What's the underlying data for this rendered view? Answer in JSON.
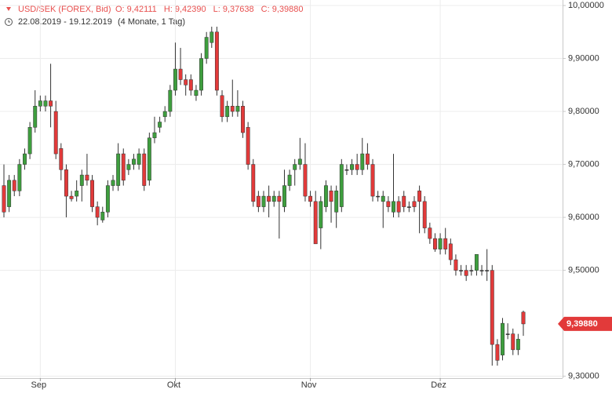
{
  "chart_data": {
    "type": "candlestick",
    "instrument": "USD/SEK (FOREX, Bid)",
    "ohlc_labels": [
      "O: 9,42111",
      "H: 9,42390",
      "L: 9,37638",
      "C: 9,39880"
    ],
    "date_range": "22.08.2019 - 19.12.2019",
    "duration": "(4 Monate, 1 Tag)",
    "up_color": "#3e9e3e",
    "down_color": "#e23a3a",
    "header_color": "#e8504f",
    "grid": true,
    "ylim": [
      9.2965,
      10.0104
    ],
    "yticks": [
      {
        "value": 10.0,
        "label": "10,00000"
      },
      {
        "value": 9.9,
        "label": "9,90000"
      },
      {
        "value": 9.8,
        "label": "9,80000"
      },
      {
        "value": 9.7,
        "label": "9,70000"
      },
      {
        "value": 9.6,
        "label": "9,60000"
      },
      {
        "value": 9.5,
        "label": "9,50000"
      },
      {
        "value": 9.3,
        "label": "9,30000"
      }
    ],
    "last_price": {
      "value": 9.3988,
      "label": "9,39880"
    },
    "categories": [
      null,
      null,
      null,
      null,
      null,
      null,
      null,
      "Sep",
      null,
      null,
      null,
      null,
      null,
      null,
      null,
      null,
      null,
      null,
      null,
      null,
      null,
      null,
      null,
      null,
      null,
      null,
      null,
      null,
      null,
      null,
      null,
      null,
      null,
      "Okt",
      null,
      null,
      null,
      null,
      null,
      null,
      null,
      null,
      null,
      null,
      null,
      null,
      null,
      null,
      null,
      null,
      null,
      null,
      null,
      null,
      null,
      null,
      null,
      null,
      null,
      "Nov",
      null,
      null,
      null,
      null,
      null,
      null,
      null,
      null,
      null,
      null,
      null,
      null,
      null,
      null,
      null,
      null,
      null,
      null,
      null,
      null,
      null,
      null,
      null,
      null,
      "Dez",
      null,
      null,
      null,
      null,
      null,
      null,
      null,
      null,
      null,
      null,
      null,
      null,
      null,
      null,
      null,
      null
    ],
    "open": [
      9.66,
      9.62,
      9.67,
      9.65,
      9.7,
      9.72,
      9.77,
      9.81,
      9.81,
      9.82,
      9.8,
      9.73,
      9.69,
      9.64,
      9.64,
      9.66,
      9.68,
      9.67,
      9.62,
      9.595,
      9.61,
      9.66,
      9.66,
      9.72,
      9.69,
      9.7,
      9.7,
      9.72,
      9.67,
      9.75,
      9.77,
      9.79,
      9.8,
      9.84,
      9.88,
      9.86,
      9.86,
      9.83,
      9.84,
      9.9,
      9.93,
      9.95,
      9.83,
      9.79,
      9.81,
      9.8,
      9.81,
      9.77,
      9.7,
      9.64,
      9.62,
      9.64,
      9.63,
      9.64,
      9.62,
      9.66,
      9.69,
      9.7,
      9.7,
      9.64,
      9.63,
      9.58,
      9.62,
      9.65,
      9.61,
      9.62,
      9.69,
      9.69,
      9.7,
      9.69,
      9.72,
      9.7,
      9.64,
      9.63,
      9.63,
      9.61,
      9.63,
      9.64,
      9.62,
      9.63,
      9.65,
      9.63,
      9.58,
      9.56,
      9.54,
      9.56,
      9.55,
      9.52,
      9.5,
      9.5,
      9.5,
      9.5,
      9.5,
      9.5,
      9.5,
      9.36,
      9.34,
      9.38,
      9.38,
      9.35,
      9.42111
    ],
    "close": [
      9.61,
      9.67,
      9.65,
      9.7,
      9.72,
      9.77,
      9.81,
      9.82,
      9.82,
      9.81,
      9.72,
      9.69,
      9.64,
      9.635,
      9.65,
      9.68,
      9.67,
      9.62,
      9.6,
      9.61,
      9.66,
      9.67,
      9.72,
      9.67,
      9.7,
      9.71,
      9.72,
      9.66,
      9.75,
      9.76,
      9.78,
      9.8,
      9.84,
      9.88,
      9.86,
      9.85,
      9.84,
      9.84,
      9.9,
      9.94,
      9.95,
      9.84,
      9.79,
      9.81,
      9.8,
      9.81,
      9.76,
      9.7,
      9.63,
      9.62,
      9.64,
      9.63,
      9.64,
      9.63,
      9.66,
      9.68,
      9.7,
      9.71,
      9.64,
      9.63,
      9.55,
      9.63,
      9.66,
      9.63,
      9.65,
      9.7,
      9.69,
      9.7,
      9.69,
      9.72,
      9.7,
      9.64,
      9.64,
      9.64,
      9.62,
      9.63,
      9.61,
      9.62,
      9.62,
      9.62,
      9.63,
      9.58,
      9.56,
      9.54,
      9.56,
      9.54,
      9.52,
      9.5,
      9.5,
      9.49,
      9.5,
      9.53,
      9.5,
      9.5,
      9.36,
      9.33,
      9.4,
      9.38,
      9.35,
      9.37,
      9.3988
    ],
    "high": [
      9.7,
      9.68,
      9.68,
      9.71,
      9.73,
      9.78,
      9.84,
      9.83,
      9.83,
      9.89,
      9.82,
      9.74,
      9.7,
      9.65,
      9.67,
      9.69,
      9.72,
      9.68,
      9.63,
      9.62,
      9.67,
      9.68,
      9.74,
      9.73,
      9.71,
      9.72,
      9.73,
      9.73,
      9.76,
      9.79,
      9.79,
      9.81,
      9.85,
      9.93,
      9.92,
      9.87,
      9.87,
      9.85,
      9.91,
      9.95,
      9.96,
      9.96,
      9.84,
      9.82,
      9.86,
      9.84,
      9.82,
      9.78,
      9.71,
      9.65,
      9.65,
      9.66,
      9.65,
      9.65,
      9.69,
      9.69,
      9.71,
      9.75,
      9.74,
      9.65,
      9.65,
      9.64,
      9.67,
      9.66,
      9.66,
      9.71,
      9.7,
      9.71,
      9.72,
      9.75,
      9.74,
      9.71,
      9.65,
      9.65,
      9.64,
      9.72,
      9.64,
      9.65,
      9.63,
      9.64,
      9.66,
      9.64,
      9.59,
      9.57,
      9.57,
      9.58,
      9.56,
      9.53,
      9.51,
      9.51,
      9.51,
      9.53,
      9.51,
      9.54,
      9.51,
      9.37,
      9.41,
      9.4,
      9.39,
      9.38,
      9.4239
    ],
    "low": [
      9.6,
      9.61,
      9.64,
      9.64,
      9.69,
      9.71,
      9.76,
      9.8,
      9.8,
      9.77,
      9.71,
      9.67,
      9.6,
      9.63,
      9.63,
      9.63,
      9.66,
      9.61,
      9.585,
      9.59,
      9.6,
      9.65,
      9.65,
      9.66,
      9.68,
      9.69,
      9.69,
      9.65,
      9.66,
      9.74,
      9.76,
      9.78,
      9.79,
      9.83,
      9.85,
      9.83,
      9.83,
      9.82,
      9.83,
      9.89,
      9.92,
      9.83,
      9.78,
      9.78,
      9.79,
      9.79,
      9.75,
      9.69,
      9.62,
      9.61,
      9.61,
      9.6,
      9.62,
      9.56,
      9.61,
      9.65,
      9.66,
      9.69,
      9.63,
      9.62,
      9.55,
      9.54,
      9.61,
      9.59,
      9.58,
      9.61,
      9.68,
      9.68,
      9.68,
      9.68,
      9.69,
      9.63,
      9.63,
      9.58,
      9.61,
      9.6,
      9.6,
      9.61,
      9.61,
      9.61,
      9.57,
      9.57,
      9.55,
      9.535,
      9.53,
      9.53,
      9.51,
      9.49,
      9.49,
      9.48,
      9.49,
      9.49,
      9.49,
      9.48,
      9.32,
      9.32,
      9.33,
      9.37,
      9.34,
      9.34,
      9.37638
    ]
  }
}
